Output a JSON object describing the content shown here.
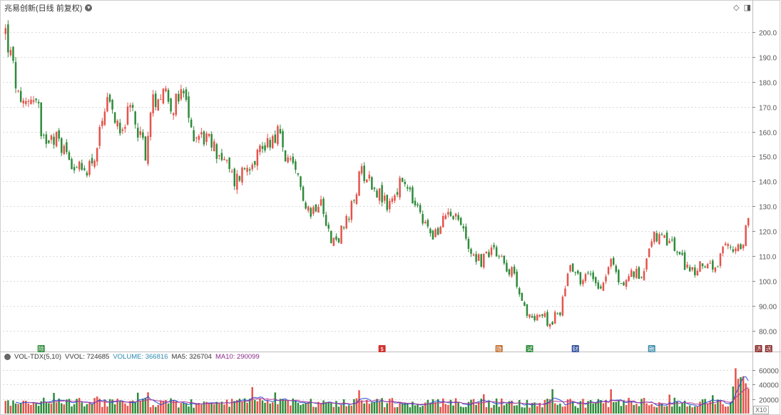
{
  "header": {
    "title": "兆易创新(日线 前复权)",
    "settings_icon": "chevron-down-icon"
  },
  "top_icons": [
    "diamond-icon",
    "panel-toggle-icon"
  ],
  "colors": {
    "up": "#e5534b",
    "down": "#2e8b3a",
    "grid": "#d9d9d9",
    "ma5": "#2b4fd6",
    "ma10": "#b03a9a"
  },
  "volume_header": {
    "name": "VOL-TDX(5,10)",
    "vvol": "VVOL: 724685",
    "volume": "VOLUME: 366816",
    "ma5": "MA5: 326704",
    "ma10": "MA10: 290099"
  },
  "x10_label": "X10",
  "event_markers": [
    {
      "label": "除",
      "color": "#2e8b3a",
      "day": 14
    },
    {
      "label": "$",
      "color": "#d03030",
      "day": 148
    },
    {
      "label": "隐",
      "color": "#c06a2a",
      "day": 194
    },
    {
      "label": "试",
      "color": "#2e8b3a",
      "day": 206
    },
    {
      "label": "财",
      "color": "#2a4a9a",
      "day": 224
    },
    {
      "label": "融",
      "color": "#3a8aaa",
      "day": 254
    },
    {
      "label": "济",
      "color": "#8b2a2a",
      "day": 296
    },
    {
      "label": "送",
      "color": "#8b2a2a",
      "day": 300
    }
  ],
  "chart_data": [
    {
      "type": "candlestick",
      "title": "兆易创新(日线 前复权)",
      "y_ticks": [
        "200.0",
        "190.0",
        "180.0",
        "170.0",
        "160.0",
        "150.0",
        "140.0",
        "130.0",
        "120.0",
        "110.0",
        "100.0",
        "90.00",
        "80.00"
      ],
      "ylim": [
        74.2,
        207.7
      ],
      "anchors": [
        [
          0,
          200
        ],
        [
          3,
          185
        ],
        [
          6,
          168
        ],
        [
          10,
          175
        ],
        [
          13,
          170
        ],
        [
          14,
          155
        ],
        [
          18,
          160
        ],
        [
          25,
          150
        ],
        [
          30,
          143
        ],
        [
          35,
          150
        ],
        [
          40,
          170
        ],
        [
          45,
          163
        ],
        [
          50,
          168
        ],
        [
          55,
          152
        ],
        [
          58,
          172
        ],
        [
          62,
          178
        ],
        [
          66,
          170
        ],
        [
          70,
          175
        ],
        [
          73,
          160
        ],
        [
          78,
          158
        ],
        [
          85,
          150
        ],
        [
          90,
          140
        ],
        [
          96,
          148
        ],
        [
          102,
          155
        ],
        [
          107,
          160
        ],
        [
          110,
          150
        ],
        [
          115,
          140
        ],
        [
          120,
          127
        ],
        [
          124,
          135
        ],
        [
          128,
          115
        ],
        [
          131,
          118
        ],
        [
          135,
          125
        ],
        [
          140,
          145
        ],
        [
          145,
          138
        ],
        [
          150,
          130
        ],
        [
          156,
          140
        ],
        [
          160,
          132
        ],
        [
          165,
          122
        ],
        [
          170,
          118
        ],
        [
          174,
          130
        ],
        [
          178,
          125
        ],
        [
          183,
          112
        ],
        [
          187,
          108
        ],
        [
          192,
          114
        ],
        [
          196,
          108
        ],
        [
          201,
          100
        ],
        [
          205,
          85
        ],
        [
          210,
          87
        ],
        [
          214,
          83
        ],
        [
          218,
          88
        ],
        [
          222,
          108
        ],
        [
          226,
          100
        ],
        [
          230,
          103
        ],
        [
          234,
          98
        ],
        [
          238,
          108
        ],
        [
          242,
          98
        ],
        [
          246,
          103
        ],
        [
          250,
          102
        ],
        [
          254,
          118
        ],
        [
          258,
          116
        ],
        [
          262,
          115
        ],
        [
          266,
          108
        ],
        [
          271,
          103
        ],
        [
          275,
          108
        ],
        [
          279,
          103
        ],
        [
          283,
          114
        ],
        [
          287,
          112
        ],
        [
          290,
          116
        ],
        [
          292,
          128
        ]
      ],
      "days": 293
    },
    {
      "type": "bar",
      "title": "VOL-TDX(5,10)",
      "y_ticks": [
        "60000",
        "40000",
        "20000"
      ],
      "ylim": [
        0,
        71000
      ],
      "series": [
        {
          "name": "VOLUME",
          "last": 366816
        },
        {
          "name": "MA5",
          "last": 326704
        },
        {
          "name": "MA10",
          "last": 290099
        }
      ]
    }
  ]
}
